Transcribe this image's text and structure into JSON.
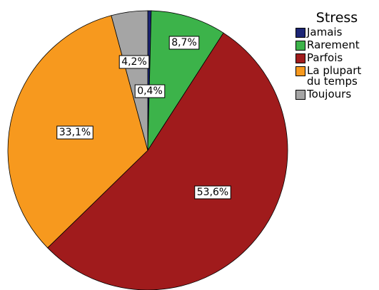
{
  "chart_data": {
    "type": "pie",
    "legend_title": "Stress",
    "categories": [
      "Jamais",
      "Rarement",
      "Parfois",
      "La plupart du temps",
      "Toujours"
    ],
    "values": [
      0.4,
      8.7,
      53.6,
      33.1,
      4.2
    ],
    "value_labels": [
      "0,4%",
      "8,7%",
      "53,6%",
      "33,1%",
      "4,2%"
    ],
    "colors": [
      "#1c2575",
      "#3cb34a",
      "#a01b1c",
      "#f7991e",
      "#a5a5a5"
    ],
    "legend": "right"
  }
}
